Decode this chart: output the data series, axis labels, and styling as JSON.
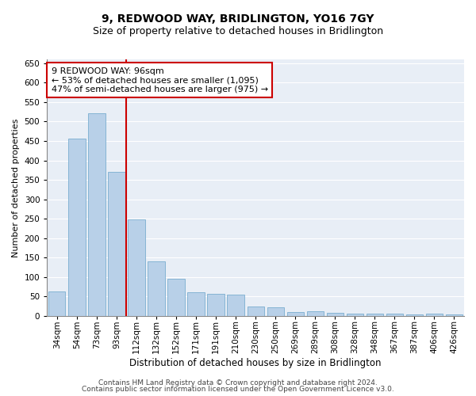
{
  "title": "9, REDWOOD WAY, BRIDLINGTON, YO16 7GY",
  "subtitle": "Size of property relative to detached houses in Bridlington",
  "xlabel": "Distribution of detached houses by size in Bridlington",
  "ylabel": "Number of detached properties",
  "categories": [
    "34sqm",
    "54sqm",
    "73sqm",
    "93sqm",
    "112sqm",
    "132sqm",
    "152sqm",
    "171sqm",
    "191sqm",
    "210sqm",
    "230sqm",
    "250sqm",
    "269sqm",
    "289sqm",
    "308sqm",
    "328sqm",
    "348sqm",
    "367sqm",
    "387sqm",
    "406sqm",
    "426sqm"
  ],
  "values": [
    62,
    457,
    522,
    370,
    248,
    140,
    95,
    60,
    57,
    55,
    25,
    22,
    10,
    12,
    7,
    6,
    6,
    5,
    4,
    6,
    4
  ],
  "bar_color": "#b8d0e8",
  "bar_edge_color": "#7aaed0",
  "bg_color": "#e8eef6",
  "grid_color": "#ffffff",
  "vline_x": 3.5,
  "vline_color": "#cc0000",
  "annotation_text": "9 REDWOOD WAY: 96sqm\n← 53% of detached houses are smaller (1,095)\n47% of semi-detached houses are larger (975) →",
  "annotation_box_facecolor": "#ffffff",
  "annotation_box_edgecolor": "#cc0000",
  "ylim": [
    0,
    660
  ],
  "yticks": [
    0,
    50,
    100,
    150,
    200,
    250,
    300,
    350,
    400,
    450,
    500,
    550,
    600,
    650
  ],
  "footnote_line1": "Contains HM Land Registry data © Crown copyright and database right 2024.",
  "footnote_line2": "Contains public sector information licensed under the Open Government Licence v3.0.",
  "title_fontsize": 10,
  "subtitle_fontsize": 9,
  "xlabel_fontsize": 8.5,
  "ylabel_fontsize": 8,
  "tick_fontsize": 7.5,
  "annotation_fontsize": 8,
  "footnote_fontsize": 6.5
}
